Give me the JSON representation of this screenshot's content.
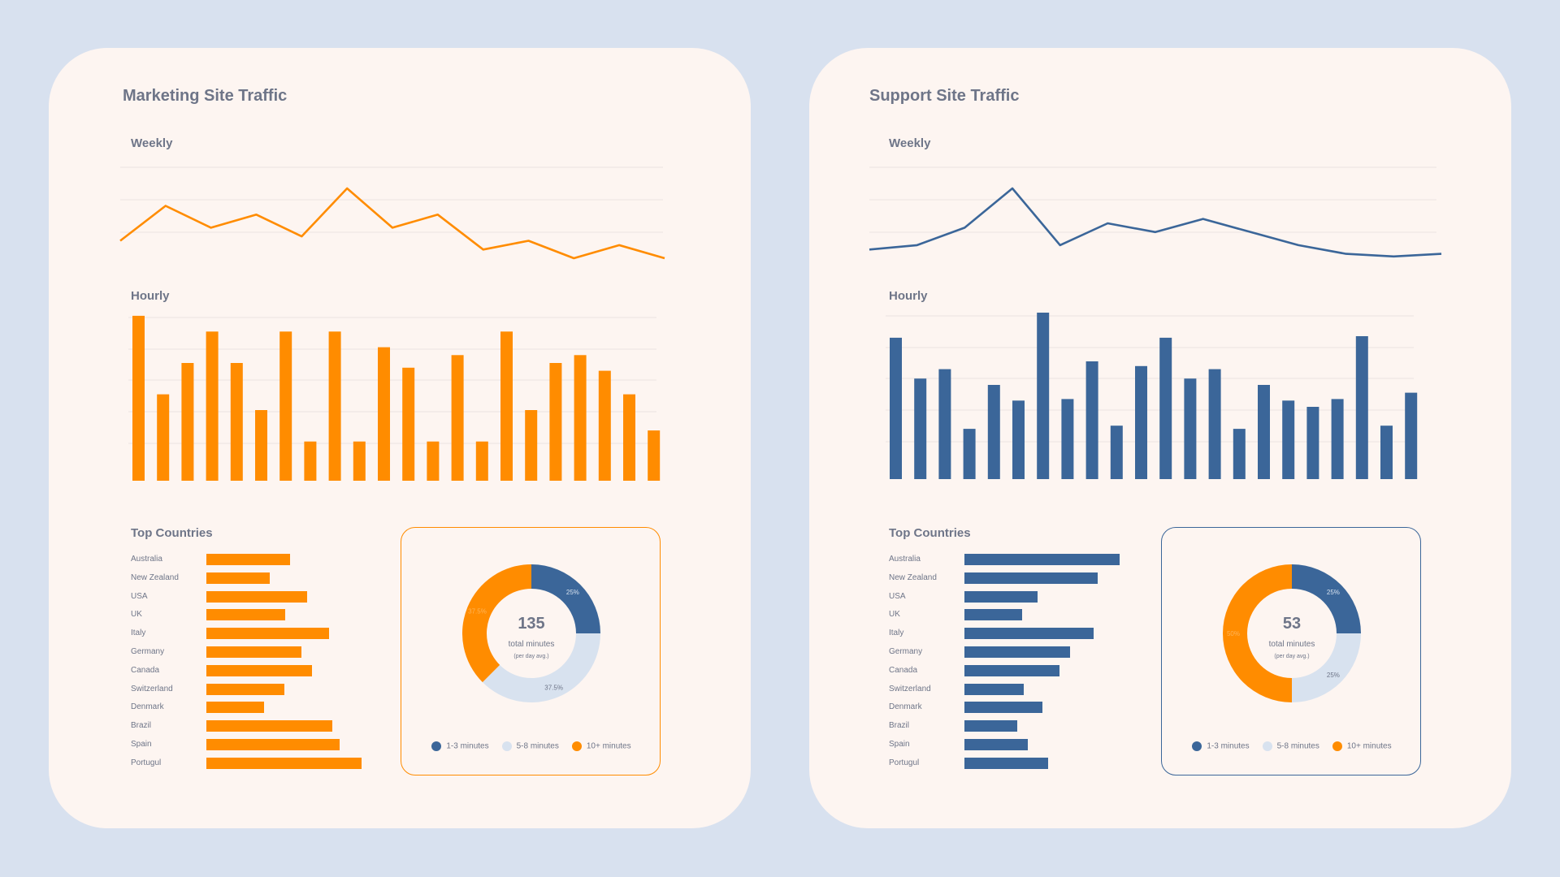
{
  "colors": {
    "background": "#d8e1ef",
    "panel": "#fdf5f1",
    "orange": "#ff8c00",
    "blue": "#3b6699",
    "light_blue": "#d8e2ef",
    "text": "#6e7588"
  },
  "dashboards": [
    {
      "title": "Marketing Site Traffic",
      "accent": "#ff8c00",
      "weekly_label": "Weekly",
      "hourly_label": "Hourly",
      "countries_label": "Top Countries",
      "countries": [
        {
          "name": "Australia",
          "value": 54
        },
        {
          "name": "New Zealand",
          "value": 41
        },
        {
          "name": "USA",
          "value": 65
        },
        {
          "name": "UK",
          "value": 51
        },
        {
          "name": "Italy",
          "value": 79
        },
        {
          "name": "Germany",
          "value": 61
        },
        {
          "name": "Canada",
          "value": 68
        },
        {
          "name": "Switzerland",
          "value": 50
        },
        {
          "name": "Denmark",
          "value": 37
        },
        {
          "name": "Brazil",
          "value": 81
        },
        {
          "name": "Spain",
          "value": 86
        },
        {
          "name": "Portugul",
          "value": 100
        }
      ],
      "donut": {
        "total": "135",
        "subtitle": "total minutes",
        "note": "(per day avg.)",
        "segments": [
          {
            "label": "1-3 minutes",
            "value": 25,
            "text": "25%",
            "color": "#3b6699",
            "text_color": "#d8e2ef"
          },
          {
            "label": "5-8 minutes",
            "value": 37.5,
            "text": "37.5%",
            "color": "#d8e2ef",
            "text_color": "#6e7588"
          },
          {
            "label": "10+ minutes",
            "value": 37.5,
            "text": "37.5%",
            "color": "#ff8c00",
            "text_color": "#ffb457"
          }
        ]
      }
    },
    {
      "title": "Support Site Traffic",
      "accent": "#3b6699",
      "weekly_label": "Weekly",
      "hourly_label": "Hourly",
      "countries_label": "Top Countries",
      "countries": [
        {
          "name": "Australia",
          "value": 100
        },
        {
          "name": "New Zealand",
          "value": 86
        },
        {
          "name": "USA",
          "value": 47
        },
        {
          "name": "UK",
          "value": 37
        },
        {
          "name": "Italy",
          "value": 83
        },
        {
          "name": "Germany",
          "value": 68
        },
        {
          "name": "Canada",
          "value": 61
        },
        {
          "name": "Switzerland",
          "value": 38
        },
        {
          "name": "Denmark",
          "value": 50
        },
        {
          "name": "Brazil",
          "value": 34
        },
        {
          "name": "Spain",
          "value": 41
        },
        {
          "name": "Portugul",
          "value": 54
        }
      ],
      "donut": {
        "total": "53",
        "subtitle": "total minutes",
        "note": "(per day avg.)",
        "segments": [
          {
            "label": "1-3 minutes",
            "value": 25,
            "text": "25%",
            "color": "#3b6699",
            "text_color": "#d8e2ef"
          },
          {
            "label": "5-8 minutes",
            "value": 25,
            "text": "25%",
            "color": "#d8e2ef",
            "text_color": "#6e7588"
          },
          {
            "label": "10+ minutes",
            "value": 50,
            "text": "50%",
            "color": "#ff8c00",
            "text_color": "#ffb457"
          }
        ]
      }
    }
  ],
  "chart_data": [
    {
      "type": "line",
      "panel": "Marketing Site Traffic",
      "title": "Weekly",
      "y": [
        2,
        6,
        3.5,
        5,
        2.5,
        8,
        3.5,
        5,
        1,
        2,
        0,
        1.5,
        0
      ]
    },
    {
      "type": "bar",
      "panel": "Marketing Site Traffic",
      "title": "Hourly",
      "values": [
        10.5,
        5.5,
        7.5,
        9.5,
        7.5,
        4.5,
        9.5,
        2.5,
        9.5,
        2.5,
        8.5,
        7.2,
        2.5,
        8,
        2.5,
        9.5,
        4.5,
        7.5,
        8,
        7,
        5.5,
        3.2
      ]
    },
    {
      "type": "line",
      "panel": "Support Site Traffic",
      "title": "Weekly",
      "y": [
        1,
        1.5,
        3.5,
        8,
        1.5,
        4,
        3,
        4.5,
        3,
        1.5,
        0.5,
        0.2,
        0.5
      ]
    },
    {
      "type": "bar",
      "panel": "Support Site Traffic",
      "title": "Hourly",
      "values": [
        9,
        6.4,
        7,
        3.2,
        6,
        5,
        10.6,
        5.1,
        7.5,
        3.4,
        7.2,
        9,
        6.4,
        7,
        3.2,
        6,
        5,
        4.6,
        5.1,
        9.1,
        3.4,
        5.5
      ]
    },
    {
      "type": "bar",
      "panel": "Marketing Site Traffic",
      "title": "Top Countries",
      "categories": [
        "Australia",
        "New Zealand",
        "USA",
        "UK",
        "Italy",
        "Germany",
        "Canada",
        "Switzerland",
        "Denmark",
        "Brazil",
        "Spain",
        "Portugul"
      ],
      "values": [
        54,
        41,
        65,
        51,
        79,
        61,
        68,
        50,
        37,
        81,
        86,
        100
      ]
    },
    {
      "type": "bar",
      "panel": "Support Site Traffic",
      "title": "Top Countries",
      "categories": [
        "Australia",
        "New Zealand",
        "USA",
        "UK",
        "Italy",
        "Germany",
        "Canada",
        "Switzerland",
        "Denmark",
        "Brazil",
        "Spain",
        "Portugul"
      ],
      "values": [
        100,
        86,
        47,
        37,
        83,
        68,
        61,
        38,
        50,
        34,
        41,
        54
      ]
    },
    {
      "type": "pie",
      "panel": "Marketing Site Traffic",
      "categories": [
        "1-3 minutes",
        "5-8 minutes",
        "10+ minutes"
      ],
      "values": [
        25,
        37.5,
        37.5
      ]
    },
    {
      "type": "pie",
      "panel": "Support Site Traffic",
      "categories": [
        "1-3 minutes",
        "5-8 minutes",
        "10+ minutes"
      ],
      "values": [
        25,
        25,
        50
      ]
    }
  ]
}
